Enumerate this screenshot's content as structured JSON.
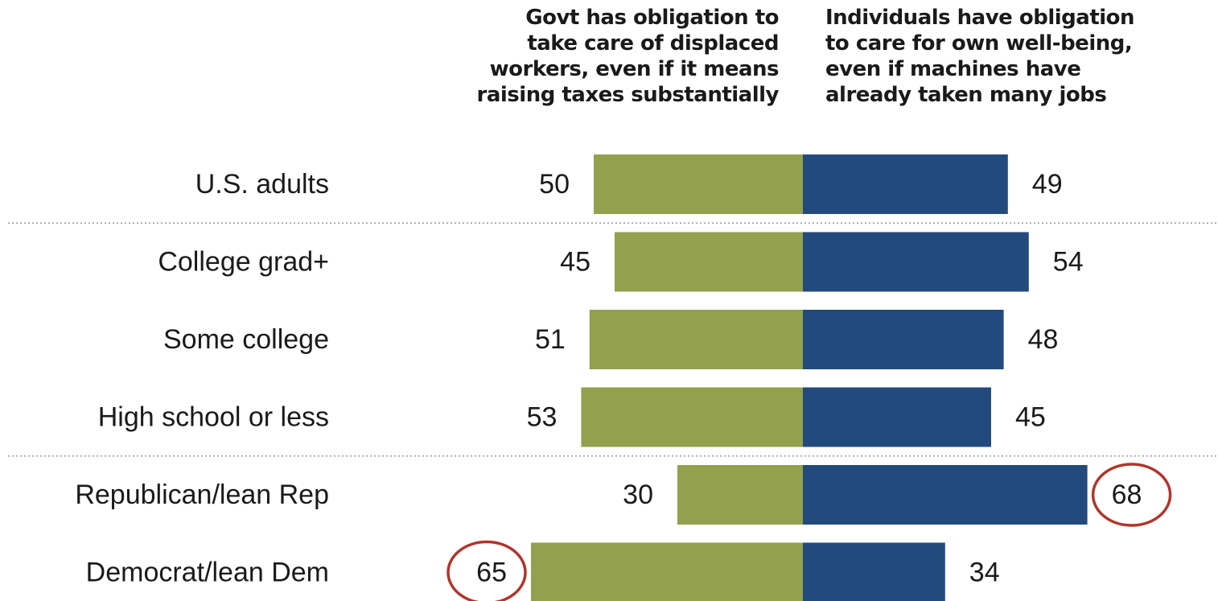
{
  "chart_data": {
    "type": "bar",
    "subtype": "diverging-horizontal",
    "headers": {
      "left": [
        "Govt has obligation to",
        "take care of displaced",
        "workers, even if it means",
        "raising taxes substantially"
      ],
      "right": [
        "Individuals have obligation",
        "to care for own well-being,",
        "even if machines have",
        "already taken many jobs"
      ]
    },
    "categories": [
      "U.S. adults",
      "College grad+",
      "Some college",
      "High school or less",
      "Republican/lean Rep",
      "Democrat/lean Dem"
    ],
    "series": [
      {
        "name": "Govt has obligation to take care of displaced workers, even if it means raising taxes substantially",
        "side": "left",
        "color": "#93a04d",
        "values": [
          50,
          45,
          51,
          53,
          30,
          65
        ]
      },
      {
        "name": "Individuals have obligation to care for own well-being, even if machines have already taken many jobs",
        "side": "right",
        "color": "#234a7c",
        "values": [
          49,
          54,
          48,
          45,
          68,
          34
        ]
      }
    ],
    "group_separators_after": [
      0,
      3
    ],
    "highlighted": [
      {
        "category": "Republican/lean Rep",
        "side": "right",
        "value": 68
      },
      {
        "category": "Democrat/lean Dem",
        "side": "left",
        "value": 65
      }
    ],
    "highlight_color": "#b0352b",
    "separator_color": "#9a9a9a",
    "text_color": "#1a1a1a"
  }
}
